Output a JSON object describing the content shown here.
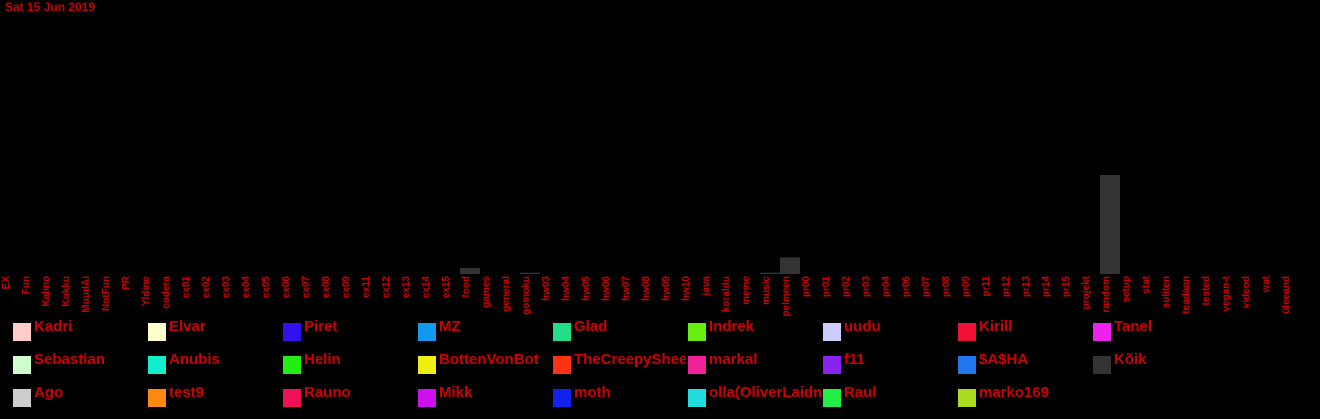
{
  "date": "Sat 15 Jun 2019",
  "chart_data": {
    "type": "bar",
    "categories": [
      "EX",
      "Fun",
      "Kalmo",
      "Kokku",
      "MuudAi",
      "NotFun",
      "PR",
      "Yldine",
      "codera",
      "ex01",
      "ex02",
      "ex03",
      "ex04",
      "ex05",
      "ex06",
      "ex07",
      "ex08",
      "ex09",
      "ex11",
      "ex12",
      "ex13",
      "ex14",
      "ex15",
      "food",
      "games",
      "general",
      "gomoku",
      "hw03",
      "hw04",
      "hw05",
      "hw06",
      "hw07",
      "hw08",
      "hw09",
      "hw10",
      "java",
      "koraldu",
      "meme",
      "music",
      "pelmeenid",
      "pr00",
      "pr01",
      "pr02",
      "pr03",
      "pr04",
      "pr06",
      "pr07",
      "pr08",
      "pr09",
      "pr11",
      "pr12",
      "pr13",
      "pr14",
      "pr15",
      "projekt",
      "random",
      "setup",
      "stat",
      "sulitenius",
      "teadaanded",
      "tested",
      "vegan-toit",
      "videod",
      "wat",
      "üleeandid"
    ],
    "series": [
      {
        "name": "Kõik",
        "values": [
          0,
          0,
          0,
          0,
          0,
          0,
          0,
          0,
          0,
          0,
          0,
          0,
          0,
          0,
          0,
          0,
          0,
          0,
          0,
          0,
          0,
          0,
          0,
          1.8,
          0,
          0,
          0.4,
          0,
          0,
          0,
          0,
          0,
          0,
          0,
          0,
          0,
          0,
          0,
          0.4,
          5,
          0,
          0,
          0,
          0,
          0,
          0,
          0,
          0,
          0,
          0,
          0,
          0,
          0,
          0,
          0,
          30,
          0,
          0,
          0,
          0,
          0,
          0,
          0,
          0,
          0
        ]
      }
    ],
    "ylim": [
      0,
      30
    ]
  },
  "legend": [
    {
      "name": "Kadri",
      "color": "#ffcccc"
    },
    {
      "name": "Elvar",
      "color": "#ffffcc"
    },
    {
      "name": "Piret",
      "color": "#3311ee"
    },
    {
      "name": "MZ",
      "color": "#1199ee"
    },
    {
      "name": "Glad",
      "color": "#22dd88"
    },
    {
      "name": "Indrek",
      "color": "#66ee11"
    },
    {
      "name": "uudu",
      "color": "#ccccff"
    },
    {
      "name": "Kirill",
      "color": "#ee1133"
    },
    {
      "name": "Tanel",
      "color": "#ee22ee"
    },
    {
      "name": "Sebastian",
      "color": "#ccffcc"
    },
    {
      "name": "Anubis",
      "color": "#11eecc"
    },
    {
      "name": "Helin",
      "color": "#22ee11"
    },
    {
      "name": "BottenVonBot",
      "color": "#eeee11"
    },
    {
      "name": "TheCreepySheep",
      "color": "#ff3311"
    },
    {
      "name": "markal",
      "color": "#ee2299"
    },
    {
      "name": "f11",
      "color": "#8822ee"
    },
    {
      "name": "$A$HA",
      "color": "#2277ee"
    },
    {
      "name": "Kõik",
      "color": "#333333"
    },
    {
      "name": "Ago",
      "color": "#cccccc"
    },
    {
      "name": "test9",
      "color": "#ff8811"
    },
    {
      "name": "Rauno",
      "color": "#ee1155"
    },
    {
      "name": "Mikk",
      "color": "#cc11ee"
    },
    {
      "name": "moth",
      "color": "#1122ee"
    },
    {
      "name": "olla(OliverLaidma)",
      "color": "#22dddd"
    },
    {
      "name": "Raul",
      "color": "#22ee44"
    },
    {
      "name": "marko169",
      "color": "#aadd22"
    }
  ]
}
